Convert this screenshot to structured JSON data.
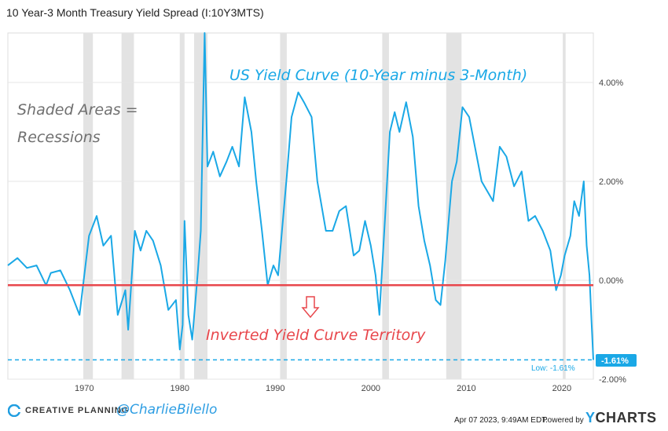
{
  "page": {
    "title": "10 Year-3 Month Treasury Yield Spread (I:10Y3MTS)",
    "footer": {
      "brand": "CREATIVE PLANNING",
      "handle": "@CharlieBilello",
      "timestamp": "Apr 07 2023, 9:49AM EDT.",
      "powered_by": "Powered by",
      "provider_prefix": "Y",
      "provider_rest": "CHARTS"
    }
  },
  "colors": {
    "series": "#1aa8e6",
    "zero_line": "#e8474c",
    "annotation_red": "#e8474c",
    "annotation_gray": "#707070",
    "annotation_blue": "#1aa8e6",
    "recession_shade": "#e3e3e3",
    "grid": "#e6e6e6",
    "low_badge": "#1aa8e6"
  },
  "chart_data": {
    "type": "line",
    "title": "US Yield Curve (10-Year minus 3-Month)",
    "xlabel": "",
    "ylabel": "",
    "xlim": [
      1962.0,
      2023.3
    ],
    "ylim": [
      -2.0,
      5.0
    ],
    "x_ticks": [
      1970,
      1980,
      1990,
      2000,
      2010,
      2020
    ],
    "x_tick_labels": [
      "1970",
      "1980",
      "1990",
      "2000",
      "2010",
      "2020"
    ],
    "y_ticks": [
      4.0,
      2.0,
      0.0,
      -2.0
    ],
    "y_tick_labels": [
      "4.00%",
      "2.00%",
      "0.00%",
      "-2.00%"
    ],
    "grid": true,
    "series": [
      {
        "points": [
          [
            1962.0,
            0.3
          ],
          [
            1963.0,
            0.45
          ],
          [
            1964.0,
            0.25
          ],
          [
            1965.0,
            0.3
          ],
          [
            1966.0,
            -0.1
          ],
          [
            1966.5,
            0.15
          ],
          [
            1967.5,
            0.2
          ],
          [
            1968.5,
            -0.2
          ],
          [
            1969.5,
            -0.7
          ],
          [
            1970.5,
            0.9
          ],
          [
            1971.3,
            1.3
          ],
          [
            1972.0,
            0.7
          ],
          [
            1972.8,
            0.9
          ],
          [
            1973.5,
            -0.7
          ],
          [
            1974.3,
            -0.2
          ],
          [
            1974.6,
            -1.0
          ],
          [
            1975.3,
            1.0
          ],
          [
            1975.9,
            0.6
          ],
          [
            1976.5,
            1.0
          ],
          [
            1977.2,
            0.8
          ],
          [
            1978.0,
            0.3
          ],
          [
            1978.8,
            -0.6
          ],
          [
            1979.6,
            -0.4
          ],
          [
            1980.0,
            -1.4
          ],
          [
            1980.3,
            -0.9
          ],
          [
            1980.5,
            1.2
          ],
          [
            1980.9,
            -0.7
          ],
          [
            1981.3,
            -1.2
          ],
          [
            1981.9,
            0.2
          ],
          [
            1982.2,
            1.0
          ],
          [
            1982.6,
            5.0
          ],
          [
            1982.9,
            2.3
          ],
          [
            1983.5,
            2.6
          ],
          [
            1984.2,
            2.1
          ],
          [
            1984.9,
            2.4
          ],
          [
            1985.5,
            2.7
          ],
          [
            1986.2,
            2.3
          ],
          [
            1986.8,
            3.7
          ],
          [
            1987.5,
            3.0
          ],
          [
            1988.0,
            2.0
          ],
          [
            1988.6,
            1.0
          ],
          [
            1989.2,
            -0.1
          ],
          [
            1989.8,
            0.3
          ],
          [
            1990.3,
            0.1
          ],
          [
            1990.7,
            1.0
          ],
          [
            1991.2,
            2.1
          ],
          [
            1991.7,
            3.3
          ],
          [
            1992.4,
            3.8
          ],
          [
            1993.0,
            3.6
          ],
          [
            1993.8,
            3.3
          ],
          [
            1994.4,
            2.0
          ],
          [
            1995.3,
            1.0
          ],
          [
            1996.0,
            1.0
          ],
          [
            1996.7,
            1.4
          ],
          [
            1997.4,
            1.5
          ],
          [
            1998.2,
            0.5
          ],
          [
            1998.8,
            0.6
          ],
          [
            1999.4,
            1.2
          ],
          [
            2000.0,
            0.7
          ],
          [
            2000.5,
            0.1
          ],
          [
            2000.9,
            -0.7
          ],
          [
            2001.5,
            1.3
          ],
          [
            2002.0,
            3.0
          ],
          [
            2002.5,
            3.4
          ],
          [
            2003.0,
            3.0
          ],
          [
            2003.7,
            3.6
          ],
          [
            2004.4,
            2.9
          ],
          [
            2005.0,
            1.5
          ],
          [
            2005.6,
            0.8
          ],
          [
            2006.2,
            0.3
          ],
          [
            2006.8,
            -0.4
          ],
          [
            2007.3,
            -0.5
          ],
          [
            2007.8,
            0.4
          ],
          [
            2008.5,
            2.0
          ],
          [
            2009.0,
            2.4
          ],
          [
            2009.6,
            3.5
          ],
          [
            2010.3,
            3.3
          ],
          [
            2010.9,
            2.7
          ],
          [
            2011.6,
            2.0
          ],
          [
            2012.2,
            1.8
          ],
          [
            2012.8,
            1.6
          ],
          [
            2013.5,
            2.7
          ],
          [
            2014.2,
            2.5
          ],
          [
            2015.0,
            1.9
          ],
          [
            2015.8,
            2.2
          ],
          [
            2016.5,
            1.2
          ],
          [
            2017.2,
            1.3
          ],
          [
            2018.0,
            1.0
          ],
          [
            2018.8,
            0.6
          ],
          [
            2019.4,
            -0.2
          ],
          [
            2019.9,
            0.1
          ],
          [
            2020.3,
            0.5
          ],
          [
            2020.9,
            0.9
          ],
          [
            2021.3,
            1.6
          ],
          [
            2021.8,
            1.3
          ],
          [
            2022.3,
            2.0
          ],
          [
            2022.6,
            0.7
          ],
          [
            2022.9,
            0.1
          ],
          [
            2023.1,
            -0.8
          ],
          [
            2023.3,
            -1.61
          ]
        ]
      }
    ],
    "recessions": [
      [
        1969.9,
        1970.9
      ],
      [
        1973.9,
        1975.2
      ],
      [
        1980.0,
        1980.5
      ],
      [
        1981.5,
        1982.9
      ],
      [
        1990.5,
        1991.2
      ],
      [
        2001.2,
        2001.9
      ],
      [
        2007.9,
        2009.5
      ],
      [
        2020.1,
        2020.4
      ]
    ],
    "annotations": {
      "chart_title": "US Yield Curve (10-Year minus 3-Month)",
      "shaded_line1": "Shaded Areas =",
      "shaded_line2": "Recessions",
      "inverted": "Inverted Yield Curve Territory"
    },
    "reference_lines": [
      {
        "label": "zero",
        "value": -0.1
      },
      {
        "label": "Low: -1.61%",
        "value": -1.61
      }
    ],
    "last_value_label": "-1.61%",
    "low_label": "Low: -1.61%"
  }
}
